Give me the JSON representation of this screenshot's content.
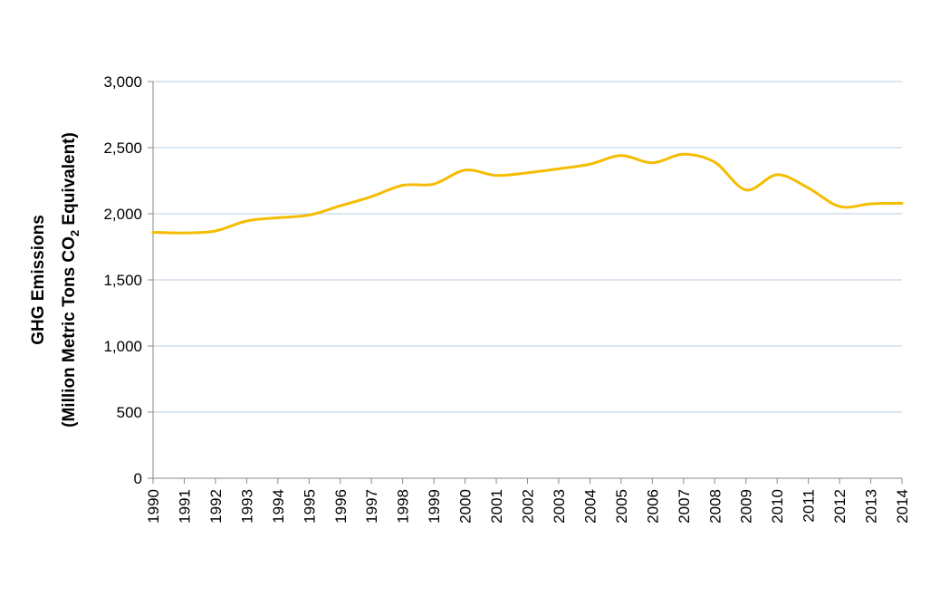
{
  "chart_data": {
    "type": "line",
    "title": "",
    "ylabel_line1": "GHG Emissions",
    "ylabel_line2_prefix": "(Million Metric Tons CO",
    "ylabel_line2_sub": "2",
    "ylabel_line2_suffix": " Equivalent)",
    "xlabel": "",
    "ylim": [
      0,
      3000
    ],
    "yticks": [
      0,
      500,
      1000,
      1500,
      2000,
      2500,
      3000
    ],
    "ytick_labels": [
      "0",
      "500",
      "1,000",
      "1,500",
      "2,000",
      "2,500",
      "3,000"
    ],
    "grid": "horizontal",
    "legend": "none",
    "line_color": "#F5BC00",
    "grid_color": "#B8CCE4",
    "x": [
      "1990",
      "1991",
      "1992",
      "1993",
      "1994",
      "1995",
      "1996",
      "1997",
      "1998",
      "1999",
      "2000",
      "2001",
      "2002",
      "2003",
      "2004",
      "2005",
      "2006",
      "2007",
      "2008",
      "2009",
      "2010",
      "2011",
      "2012",
      "2013",
      "2014"
    ],
    "series": [
      {
        "values": [
          1860,
          1855,
          1870,
          1945,
          1970,
          1990,
          2060,
          2130,
          2215,
          2225,
          2330,
          2290,
          2310,
          2340,
          2375,
          2440,
          2385,
          2450,
          2390,
          2180,
          2295,
          2195,
          2055,
          2075,
          2080
        ]
      }
    ]
  }
}
